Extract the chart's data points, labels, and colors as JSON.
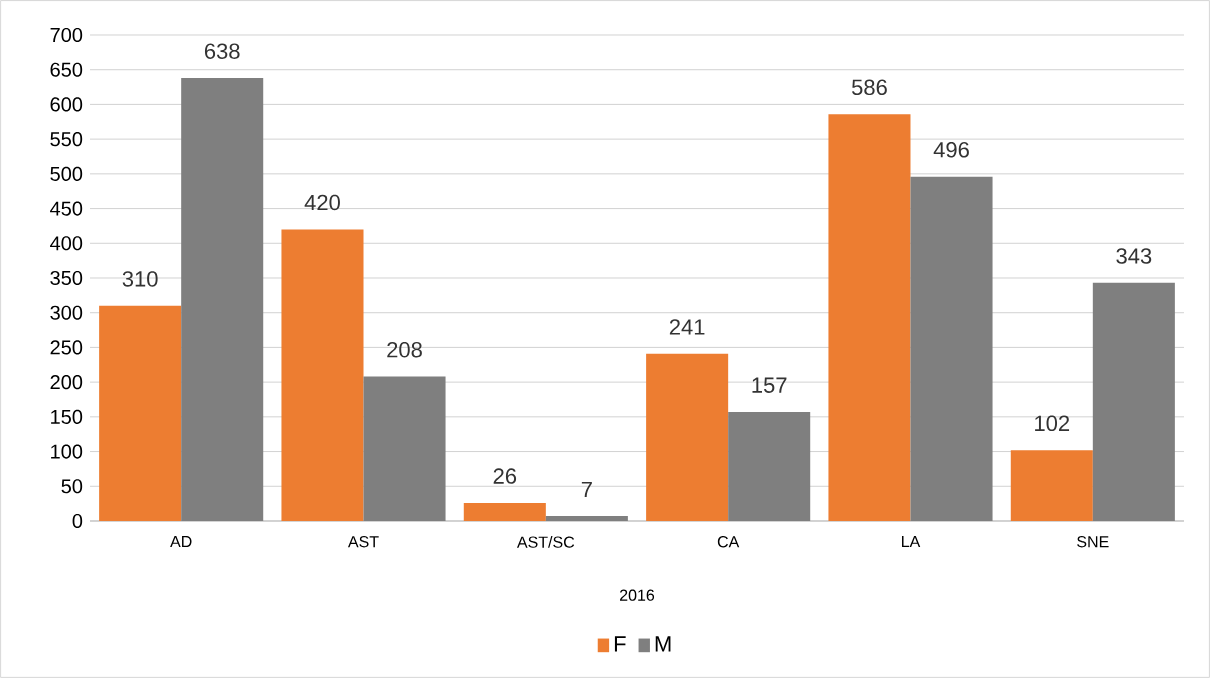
{
  "chart_data": {
    "type": "bar",
    "xlabel": "2016",
    "categories": [
      "AD",
      "AST",
      "AST/SC",
      "CA",
      "LA",
      "SNE"
    ],
    "series": [
      {
        "name": "F",
        "color": "#ed7d31",
        "values": [
          310,
          420,
          26,
          241,
          586,
          102
        ]
      },
      {
        "name": "M",
        "color": "#7f7f7f",
        "values": [
          638,
          208,
          7,
          157,
          496,
          343
        ]
      }
    ],
    "ylim": [
      0,
      700
    ],
    "yticks": [
      0,
      50,
      100,
      150,
      200,
      250,
      300,
      350,
      400,
      450,
      500,
      550,
      600,
      650,
      700
    ],
    "grid": "y",
    "legend": "bottom",
    "data_labels": true
  }
}
